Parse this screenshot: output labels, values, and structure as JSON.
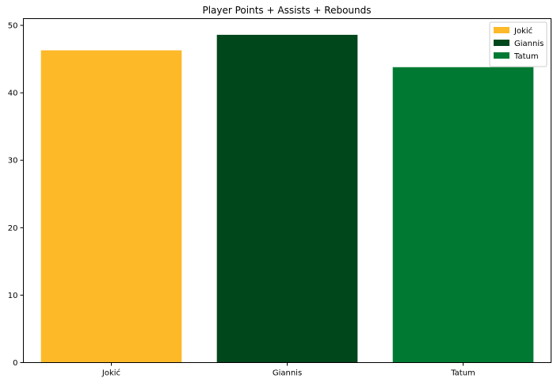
{
  "chart_data": {
    "type": "bar",
    "title": "Player Points + Assists + Rebounds",
    "xlabel": "",
    "ylabel": "",
    "categories": [
      "Jokić",
      "Giannis",
      "Tatum"
    ],
    "values": [
      46.3,
      48.6,
      43.8
    ],
    "colors": [
      "#FDB927",
      "#00471B",
      "#007A33"
    ],
    "ylim": [
      0,
      51
    ],
    "yticks": [
      0,
      10,
      20,
      30,
      40,
      50
    ],
    "grid": false,
    "legend": {
      "placement": "top-right",
      "entries": [
        "Jokić",
        "Giannis",
        "Tatum"
      ]
    }
  }
}
